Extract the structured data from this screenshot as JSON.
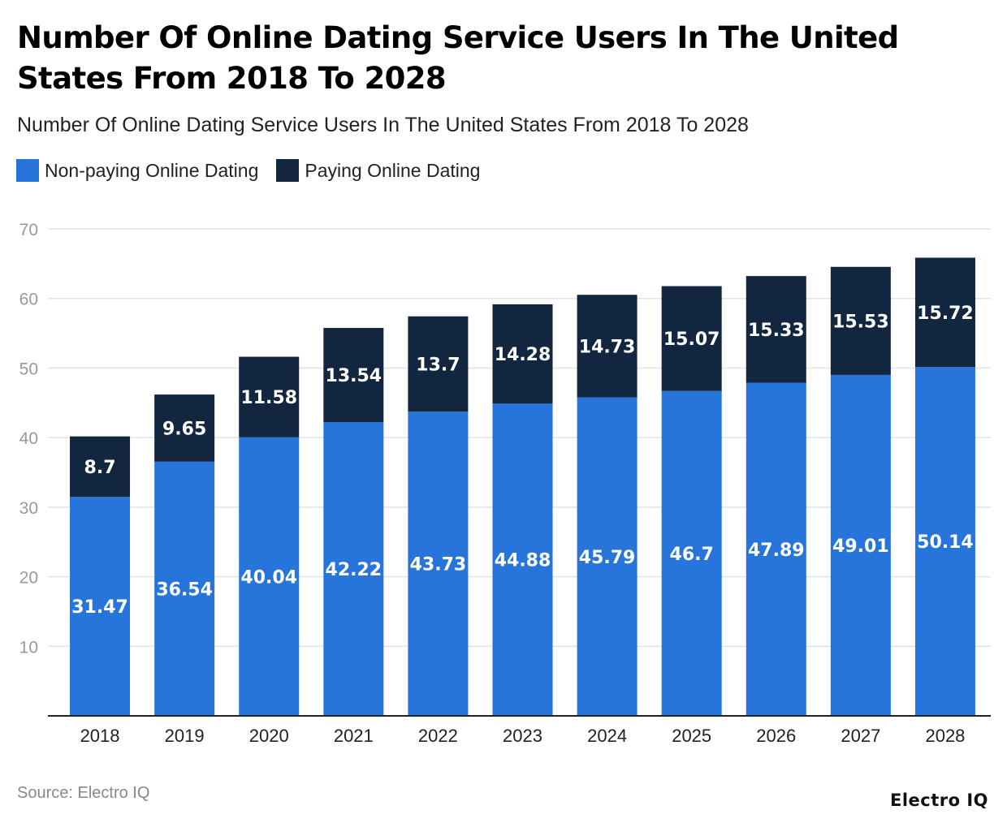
{
  "title": "Number Of Online Dating Service Users In The United States From 2018 To 2028",
  "source": "Source: Electro IQ",
  "logo": "Electro IQ",
  "colors": {
    "non_paying": "#2775db",
    "paying": "#12263f",
    "grid": "#e3e3e3",
    "axis": "#222222",
    "tick": "#999999"
  },
  "chart_data": {
    "type": "bar",
    "stacked": true,
    "title": "Number Of Online Dating Service Users In The United States From 2018 To 2028",
    "subtitle": "Number Of Online Dating Service Users In The United States From 2018 To 2028",
    "xlabel": "",
    "ylabel": "",
    "ylim": [
      0,
      70
    ],
    "yticks": [
      10,
      20,
      30,
      40,
      50,
      60,
      70
    ],
    "grid": true,
    "legend": "top-left",
    "categories": [
      "2018",
      "2019",
      "2020",
      "2021",
      "2022",
      "2023",
      "2024",
      "2025",
      "2026",
      "2027",
      "2028"
    ],
    "series": [
      {
        "name": "Non-paying Online Dating",
        "values": [
          31.47,
          36.54,
          40.04,
          42.22,
          43.73,
          44.88,
          45.79,
          46.7,
          47.89,
          49.01,
          50.14
        ]
      },
      {
        "name": "Paying Online Dating",
        "values": [
          8.7,
          9.65,
          11.58,
          13.54,
          13.7,
          14.28,
          14.73,
          15.07,
          15.33,
          15.53,
          15.72
        ]
      }
    ]
  }
}
